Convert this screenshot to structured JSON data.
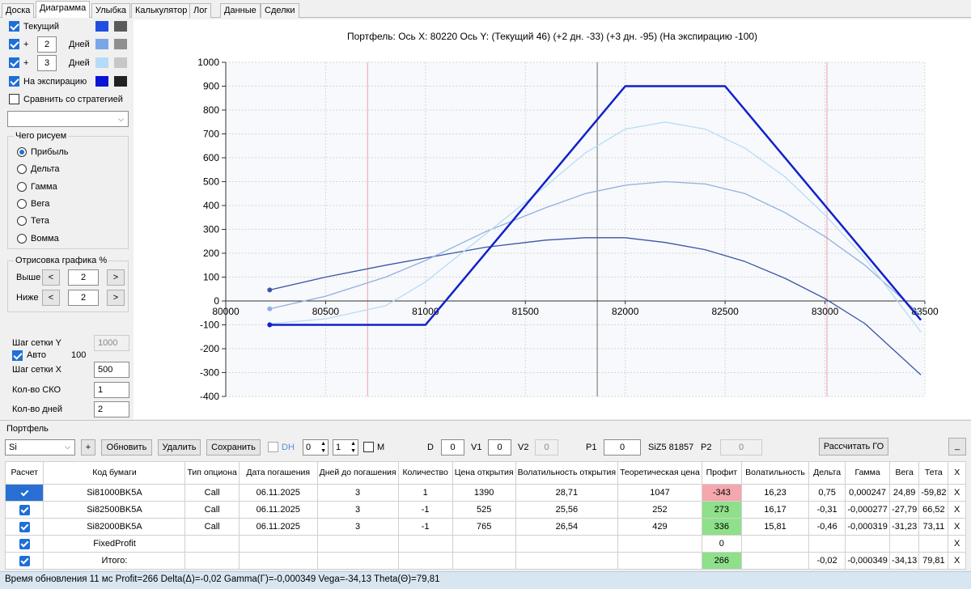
{
  "tabs": [
    "Доска",
    "Диаграмма",
    "Улыбка",
    "Калькулятор",
    "Лог",
    "Данные",
    "Сделки"
  ],
  "active_tab": "Диаграмма",
  "left_panel": {
    "series": [
      {
        "label": "Текущий",
        "checked": true,
        "color1": "#1f4fe0",
        "color2": "#5a5a5a"
      },
      {
        "prefix": "+",
        "days": "2",
        "suffix": "Дней",
        "checked": true,
        "color1": "#7aa6e8",
        "color2": "#8f8f8f"
      },
      {
        "prefix": "+",
        "days": "3",
        "suffix": "Дней",
        "checked": true,
        "color1": "#b5dbf7",
        "color2": "#c7c7c7"
      },
      {
        "label": "На экспирацию",
        "checked": true,
        "color1": "#0a14d6",
        "color2": "#222222"
      }
    ],
    "compare_label": "Сравнить со стратегией",
    "what_group": "Чего рисуем",
    "what_options": [
      "Прибыль",
      "Дельта",
      "Гамма",
      "Вега",
      "Тета",
      "Вомма"
    ],
    "what_selected": 0,
    "draw_group": "Отрисовка графика %",
    "above_label": "Выше",
    "above_value": "2",
    "below_label": "Ниже",
    "below_value": "2",
    "prev_btn": "<",
    "next_btn": ">",
    "grid_y_label": "Шаг сетки Y",
    "grid_y_value": "1000",
    "auto_label": "Авто",
    "auto_value": "100",
    "grid_x_label": "Шаг сетки X",
    "grid_x_value": "500",
    "sko_label": "Кол-во СКО",
    "sko_value": "1",
    "days_label": "Кол-во дней",
    "days_value": "2"
  },
  "chart_data": {
    "type": "line",
    "title": "Портфель: Ось X: 80220 Ось Y:  (Текущий 46)  (+2 дн. -33)  (+3 дн. -95)  (На экспирацию -100)",
    "xlim": [
      80000,
      83500
    ],
    "ylim": [
      -400,
      1000
    ],
    "x_ticks": [
      80000,
      80500,
      81000,
      81500,
      82000,
      82500,
      83000,
      83500
    ],
    "y_ticks": [
      1000,
      900,
      800,
      700,
      600,
      500,
      400,
      300,
      200,
      100,
      0,
      -100,
      -200,
      -300,
      -400
    ],
    "cursor_x": 81860,
    "std_lines_x": [
      80710,
      83010
    ],
    "grid": true,
    "series": [
      {
        "name": "Текущий",
        "color": "#3c55a8",
        "x": [
          80220,
          80500,
          80800,
          81000,
          81300,
          81600,
          81800,
          82000,
          82200,
          82400,
          82600,
          82800,
          83000,
          83200,
          83480
        ],
        "y": [
          46,
          100,
          150,
          180,
          225,
          255,
          265,
          265,
          245,
          215,
          165,
          95,
          10,
          -95,
          -310
        ]
      },
      {
        "name": "+2 дн.",
        "color": "#8fb0e0",
        "x": [
          80220,
          80500,
          80800,
          81000,
          81300,
          81600,
          81800,
          82000,
          82200,
          82400,
          82600,
          82800,
          83000,
          83200,
          83480
        ],
        "y": [
          -33,
          20,
          100,
          170,
          290,
          390,
          450,
          485,
          500,
          490,
          450,
          370,
          270,
          150,
          -60
        ]
      },
      {
        "name": "+3 дн.",
        "color": "#b8dcf5",
        "x": [
          80220,
          80500,
          80800,
          81000,
          81300,
          81600,
          81800,
          82000,
          82200,
          82400,
          82600,
          82800,
          83000,
          83200,
          83480
        ],
        "y": [
          -95,
          -75,
          -20,
          80,
          280,
          480,
          620,
          720,
          750,
          720,
          640,
          520,
          360,
          180,
          -130
        ]
      },
      {
        "name": "На экспирацию",
        "color": "#1221c8",
        "x": [
          80220,
          81000,
          82000,
          82500,
          83480
        ],
        "y": [
          -100,
          -100,
          900,
          900,
          -80
        ]
      }
    ]
  },
  "portfolio": {
    "title": "Портфель",
    "instrument": "Si",
    "plus_btn": "+",
    "refresh_btn": "Обновить",
    "delete_btn": "Удалить",
    "save_btn": "Сохранить",
    "dh_label": "DH",
    "dh_value1": "0",
    "dh_value2": "1",
    "m_label": "M",
    "d_label": "D",
    "d_value": "0",
    "v1_label": "V1",
    "v1_value": "0",
    "v2_label": "V2",
    "v2_value": "0",
    "p1_label": "P1",
    "p1_value": "0",
    "price_text": "SiZ5 81857",
    "p2_label": "P2",
    "p2_value": "0",
    "go_btn": "Рассчитать ГО",
    "minimize_btn": "_",
    "columns": [
      "Расчет",
      "Код бумаги",
      "Тип опциона",
      "Дата погашения",
      "Дней до погашения",
      "Количество",
      "Цена открытия",
      "Волатильность открытия",
      "Теоретическая цена",
      "Профит",
      "Волатильность",
      "Дельта",
      "Гамма",
      "Вега",
      "Тета",
      "X"
    ],
    "rows": [
      [
        "",
        "Si81000BK5A",
        "Call",
        "06.11.2025",
        "3",
        "1",
        "1390",
        "28,71",
        "1047",
        "-343",
        "16,23",
        "0,75",
        "0,000247",
        "24,89",
        "-59,82",
        "X"
      ],
      [
        "",
        "Si82500BK5A",
        "Call",
        "06.11.2025",
        "3",
        "-1",
        "525",
        "25,56",
        "252",
        "273",
        "16,17",
        "-0,31",
        "-0,000277",
        "-27,79",
        "66,52",
        "X"
      ],
      [
        "",
        "Si82000BK5A",
        "Call",
        "06.11.2025",
        "3",
        "-1",
        "765",
        "26,54",
        "429",
        "336",
        "15,81",
        "-0,46",
        "-0,000319",
        "-31,23",
        "73,11",
        "X"
      ],
      [
        "",
        "FixedProfit",
        "",
        "",
        "",
        "",
        "",
        "",
        "",
        "0",
        "",
        "",
        "",
        "",
        "",
        "X"
      ],
      [
        "",
        "Итого:",
        "",
        "",
        "",
        "",
        "",
        "",
        "",
        "266",
        "",
        "-0,02",
        "-0,000349",
        "-34,13",
        "79,81",
        "X"
      ]
    ]
  },
  "status": "Время обновления 11 мс  Profit=266 Delta(Δ)=-0,02 Gamma(Γ)=-0,000349 Vega=-34,13 Theta(Θ)=79,81"
}
